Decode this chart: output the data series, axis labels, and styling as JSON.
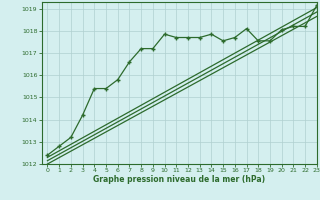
{
  "background_color": "#d4efef",
  "grid_color": "#b0d0d0",
  "line_color": "#2d6b2d",
  "ylim": [
    1012,
    1019.3
  ],
  "xlim": [
    -0.5,
    23
  ],
  "yticks": [
    1012,
    1013,
    1014,
    1015,
    1016,
    1017,
    1018,
    1019
  ],
  "xticks": [
    0,
    1,
    2,
    3,
    4,
    5,
    6,
    7,
    8,
    9,
    10,
    11,
    12,
    13,
    14,
    15,
    16,
    17,
    18,
    19,
    20,
    21,
    22,
    23
  ],
  "xlabel": "Graphe pression niveau de la mer (hPa)",
  "marked_x": [
    0,
    1,
    2,
    3,
    4,
    5,
    6,
    7,
    8,
    9,
    10,
    11,
    12,
    13,
    14,
    15,
    16,
    17,
    18,
    19,
    20,
    21,
    22,
    23
  ],
  "marked_y": [
    1012.4,
    1012.8,
    1013.2,
    1014.2,
    1015.4,
    1015.4,
    1015.8,
    1016.6,
    1017.2,
    1017.2,
    1017.85,
    1017.7,
    1017.7,
    1017.7,
    1017.85,
    1017.55,
    1017.7,
    1018.1,
    1017.55,
    1017.55,
    1018.05,
    1018.2,
    1018.2,
    1019.15
  ],
  "line1_x": [
    0,
    23
  ],
  "line1_y": [
    1012.3,
    1019.05
  ],
  "line2_x": [
    0,
    23
  ],
  "line2_y": [
    1012.15,
    1018.85
  ],
  "line3_x": [
    0,
    23
  ],
  "line3_y": [
    1012.0,
    1018.65
  ]
}
